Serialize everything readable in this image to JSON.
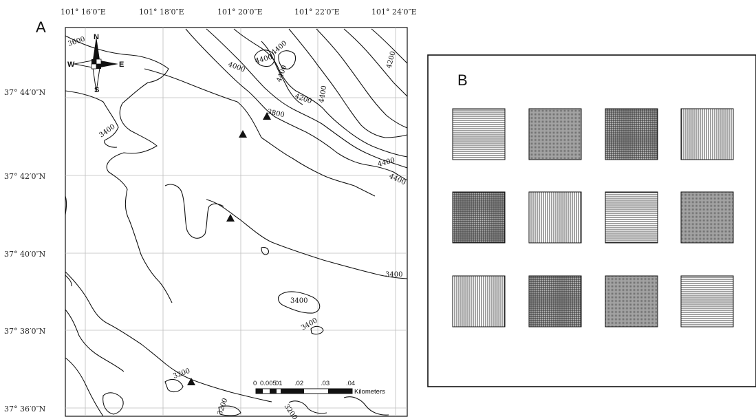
{
  "panel_a": {
    "letter": "A",
    "lon_labels": [
      "101° 16′0″E",
      "101° 18′0″E",
      "101° 20′0″E",
      "101° 22′0″E",
      "101° 24′0″E"
    ],
    "lat_labels": [
      "37° 44′0″N",
      "37° 42′0″N",
      "37° 40′0″N",
      "37° 38′0″N",
      "37° 36′0″N"
    ],
    "compass": {
      "north": "N",
      "south": "S",
      "east": "E",
      "west": "W"
    },
    "contour_labels": [
      "3600",
      "4000",
      "4400",
      "4400",
      "4400",
      "4400",
      "4200",
      "4200",
      "3800",
      "3400",
      "4400",
      "4400",
      "3400",
      "3400",
      "3400",
      "3200",
      "3200",
      "3200"
    ],
    "scale_bar": {
      "ticks": [
        "0",
        "0.005",
        "01",
        ".02",
        ".03",
        ".04"
      ],
      "unit": "Kilometers"
    },
    "sites": [
      {
        "name": "site-1"
      },
      {
        "name": "site-2"
      },
      {
        "name": "site-3"
      },
      {
        "name": "site-4"
      }
    ]
  },
  "panel_b": {
    "letter": "B",
    "patterns": [
      [
        "horizontal",
        "fine",
        "crosshatch",
        "vertical"
      ],
      [
        "crosshatch",
        "vertical",
        "horizontal",
        "fine"
      ],
      [
        "vertical",
        "crosshatch",
        "fine",
        "horizontal"
      ]
    ]
  },
  "colors": {
    "ink": "#111111",
    "grid": "#bdbdbd",
    "fine_fill": "#8f8f8f"
  }
}
